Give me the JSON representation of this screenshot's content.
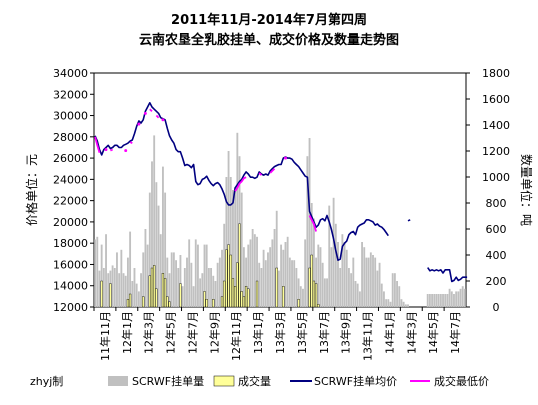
{
  "chart_data": {
    "type": "bar",
    "title": "2011年11月-2014年7月第四周",
    "subtitle": "云南农垦全乳胶挂单、成交价格及数量走势图",
    "ylabel_left": "价格单位：元",
    "ylabel_right": "数量单位：吨",
    "author": "zhyj制",
    "ylim_left": [
      12000,
      34000
    ],
    "ylim_right": [
      0,
      1800
    ],
    "yticks_left": [
      "34000",
      "32000",
      "30000",
      "28000",
      "26000",
      "24000",
      "22000",
      "20000",
      "18000",
      "16000",
      "14000",
      "12000"
    ],
    "yticks_right": [
      "1800",
      "1600",
      "1400",
      "1200",
      "1000",
      "800",
      "600",
      "400",
      "200",
      "0"
    ],
    "x_tick_labels": [
      "11年11月",
      "12年1月",
      "12年3月",
      "12年5月",
      "12年7月",
      "12年9月",
      "12年11月",
      "13年1月",
      "13年3月",
      "13年5月",
      "13年7月",
      "13年9月",
      "13年11月",
      "14年1月",
      "14年3月",
      "14年5月",
      "14年7月"
    ],
    "legend": [
      "SCRWF挂单量",
      "成交量",
      "SCRWF挂单均价",
      "成交最低价"
    ],
    "series": [
      {
        "name": "SCRWF挂单量",
        "kind": "bar",
        "axis": "right",
        "color": "#c0c0c0",
        "values": [
          520,
          540,
          280,
          480,
          300,
          560,
          260,
          280,
          320,
          300,
          420,
          260,
          440,
          260,
          240,
          380,
          580,
          200,
          300,
          180,
          120,
          260,
          420,
          600,
          480,
          880,
          1120,
          1320,
          960,
          780,
          560,
          1080,
          880,
          380,
          260,
          420,
          420,
          360,
          300,
          400,
          160,
          300,
          380,
          520,
          340,
          160,
          520,
          480,
          220,
          260,
          480,
          480,
          300,
          300,
          240,
          200,
          340,
          380,
          440,
          640,
          1000,
          1200,
          1000,
          900,
          920,
          1340,
          1160,
          880,
          460,
          380,
          480,
          520,
          600,
          560,
          540,
          340,
          300,
          440,
          360,
          420,
          460,
          520,
          600,
          740,
          280,
          480,
          440,
          500,
          540,
          380,
          360,
          360,
          300,
          220,
          160,
          140,
          520,
          1160,
          1300,
          800,
          680,
          380,
          480,
          460,
          340,
          220,
          220,
          780,
          460,
          840,
          640,
          500,
          300,
          560,
          500,
          440,
          300,
          260,
          380,
          200,
          180,
          120,
          500,
          460,
          380,
          380,
          420,
          400,
          380,
          280,
          340,
          180,
          120,
          60,
          60,
          40,
          260,
          260,
          200,
          160,
          60,
          40,
          20,
          20,
          0,
          0,
          0,
          0,
          0,
          0,
          0,
          0,
          100,
          100,
          100,
          100,
          100,
          100,
          100,
          100,
          100,
          100,
          140,
          120,
          100,
          120,
          120,
          140,
          160,
          140
        ]
      },
      {
        "name": "成交量",
        "kind": "bar",
        "axis": "right",
        "color": "#ffff99",
        "values": [
          0,
          0,
          0,
          200,
          0,
          0,
          0,
          180,
          0,
          0,
          0,
          0,
          0,
          0,
          0,
          60,
          100,
          0,
          0,
          0,
          0,
          0,
          80,
          0,
          0,
          240,
          300,
          320,
          140,
          0,
          0,
          260,
          220,
          80,
          40,
          0,
          0,
          0,
          0,
          180,
          0,
          0,
          0,
          0,
          0,
          0,
          0,
          0,
          0,
          0,
          120,
          60,
          0,
          0,
          60,
          0,
          0,
          0,
          80,
          200,
          440,
          480,
          400,
          220,
          160,
          340,
          640,
          120,
          80,
          160,
          140,
          0,
          0,
          0,
          200,
          0,
          0,
          0,
          0,
          0,
          0,
          0,
          0,
          300,
          0,
          0,
          160,
          0,
          0,
          0,
          0,
          0,
          0,
          60,
          0,
          0,
          0,
          0,
          300,
          400,
          200,
          180,
          20,
          0,
          0,
          0,
          0,
          0,
          0,
          0,
          0,
          0,
          0,
          0,
          0,
          0,
          0,
          0,
          0,
          0,
          0,
          0,
          0,
          0,
          0,
          0,
          0,
          0,
          0,
          0,
          0,
          0,
          0,
          0,
          0,
          0,
          0,
          0,
          0,
          0,
          0,
          0,
          0,
          0,
          0,
          0,
          0,
          0,
          0,
          0,
          0,
          0,
          0,
          0,
          0,
          0,
          0,
          0,
          0,
          0,
          0,
          0,
          0,
          0,
          0,
          0,
          0,
          0,
          0,
          0,
          0
        ]
      },
      {
        "name": "SCRWF挂单均价",
        "kind": "line",
        "axis": "left",
        "color": "#000080",
        "values": [
          28100,
          27600,
          26800,
          26300,
          26800,
          27000,
          27200,
          26900,
          27000,
          27200,
          27200,
          27000,
          27000,
          27200,
          27300,
          27400,
          27600,
          27700,
          28300,
          29000,
          29500,
          29300,
          29600,
          30400,
          30800,
          31200,
          30800,
          30600,
          30400,
          30200,
          29800,
          29700,
          29600,
          28800,
          28100,
          27700,
          27400,
          26800,
          26600,
          26600,
          26000,
          25300,
          25400,
          25300,
          25100,
          25400,
          23800,
          23500,
          23600,
          24000,
          24100,
          24300,
          23900,
          23600,
          23400,
          23600,
          23700,
          23500,
          23100,
          22600,
          21900,
          21600,
          21600,
          21800,
          23200,
          23500,
          23800,
          24000,
          24400,
          24700,
          24500,
          24200,
          24200,
          24100,
          24200,
          24700,
          24500,
          24400,
          24500,
          24400,
          24800,
          25000,
          25200,
          25300,
          25400,
          25400,
          26000,
          26100,
          26000,
          26000,
          25900,
          25600,
          25400,
          25200,
          24900,
          24600,
          24300,
          24200,
          21000,
          20500,
          20000,
          19500,
          19700,
          20200,
          20300,
          20100,
          20600,
          20000,
          19300,
          18400,
          17300,
          16400,
          16500,
          17700,
          18000,
          18200,
          18800,
          19000,
          19100,
          18800,
          19500,
          19700,
          19800,
          19900,
          20200,
          20200,
          20100,
          20000,
          19700,
          19800,
          19600,
          19500,
          19300,
          19000,
          18700,
          null,
          null,
          null,
          null,
          null,
          null,
          null,
          null,
          20100,
          20200,
          null,
          null,
          null,
          null,
          null,
          null,
          null,
          15700,
          15400,
          15500,
          15400,
          15500,
          15400,
          15500,
          15200,
          15500,
          15500,
          15500,
          14400,
          14500,
          14800,
          14500,
          14600,
          14800,
          14800,
          14800
        ]
      },
      {
        "name": "成交最低价",
        "kind": "line",
        "axis": "left",
        "color": "#ff00ff",
        "values": [
          28000,
          27200,
          26500,
          null,
          null,
          26800,
          null,
          26700,
          26800,
          null,
          null,
          null,
          null,
          null,
          26700,
          null,
          27500,
          27400,
          null,
          null,
          29200,
          null,
          null,
          30200,
          null,
          30600,
          30400,
          null,
          30000,
          29800,
          null,
          29600,
          null,
          null,
          null,
          null,
          null,
          null,
          null,
          null,
          null,
          null,
          null,
          null,
          null,
          null,
          null,
          null,
          null,
          null,
          null,
          null,
          null,
          null,
          null,
          null,
          null,
          null,
          null,
          null,
          null,
          null,
          null,
          null,
          22900,
          23200,
          23600,
          23800,
          24100,
          24200,
          null,
          null,
          null,
          null,
          null,
          24600,
          24400,
          null,
          null,
          null,
          24600,
          24800,
          25000,
          null,
          null,
          null,
          null,
          26000,
          null,
          null,
          null,
          null,
          null,
          null,
          null,
          null,
          null,
          null,
          20600,
          20200,
          19800,
          19100,
          null,
          null,
          null,
          null,
          null,
          null,
          null,
          null,
          null,
          null,
          null,
          null,
          null,
          null,
          null,
          null,
          null,
          null,
          null,
          null,
          null,
          null,
          null,
          null,
          null,
          null,
          null,
          null,
          null,
          null,
          null,
          null,
          null,
          null,
          null,
          null,
          null,
          null,
          null,
          null,
          null,
          null,
          null,
          null,
          null,
          null,
          null,
          null,
          null,
          null,
          null,
          null,
          null,
          null,
          null,
          null,
          null,
          null,
          null,
          null,
          null,
          null,
          null,
          null,
          null,
          null,
          null
        ]
      }
    ]
  }
}
